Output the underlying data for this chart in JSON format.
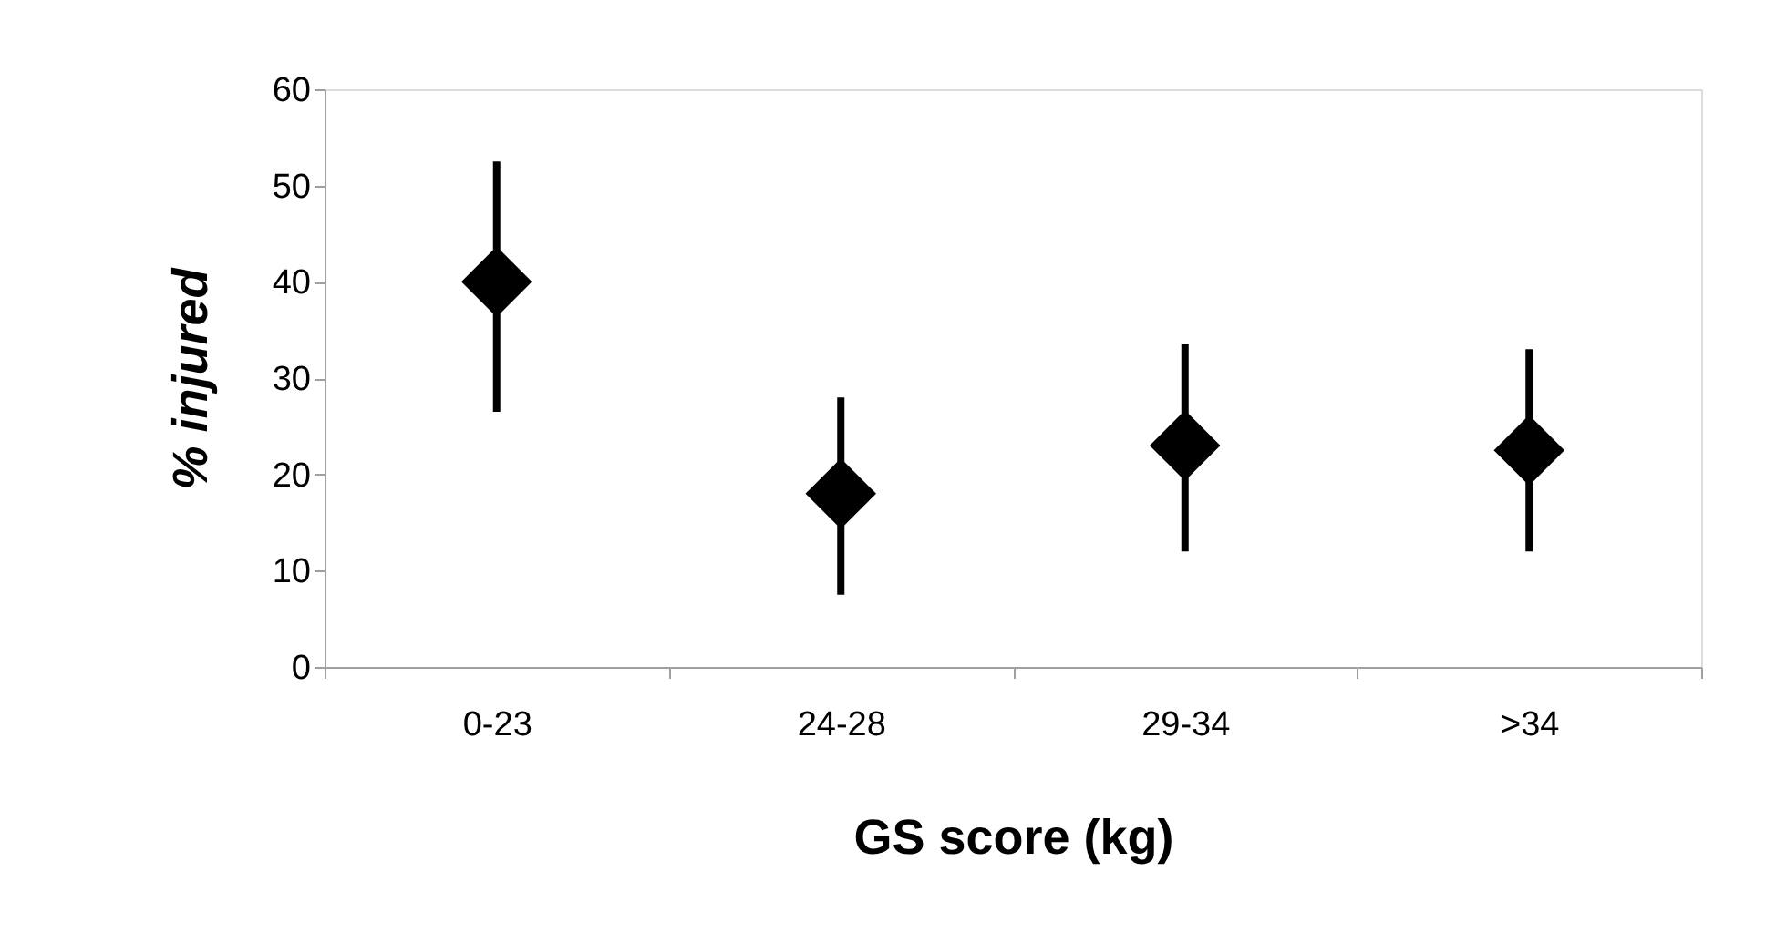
{
  "chart_data": {
    "type": "scatter",
    "xlabel": "GS score (kg)",
    "ylabel": "% injured",
    "categories": [
      "0-23",
      "24-28",
      "29-34",
      ">34"
    ],
    "series": [
      {
        "color": "#000000",
        "values": [
          40,
          18,
          23,
          22.5
        ],
        "errors": [
          [
            26.5,
            52.5
          ],
          [
            7.5,
            28
          ],
          [
            12,
            33.5
          ],
          [
            12,
            33
          ]
        ]
      }
    ],
    "ylim": [
      0,
      60
    ],
    "yticks": [
      0,
      10,
      20,
      30,
      40,
      50,
      60
    ],
    "marker": "diamond",
    "grid": false
  }
}
